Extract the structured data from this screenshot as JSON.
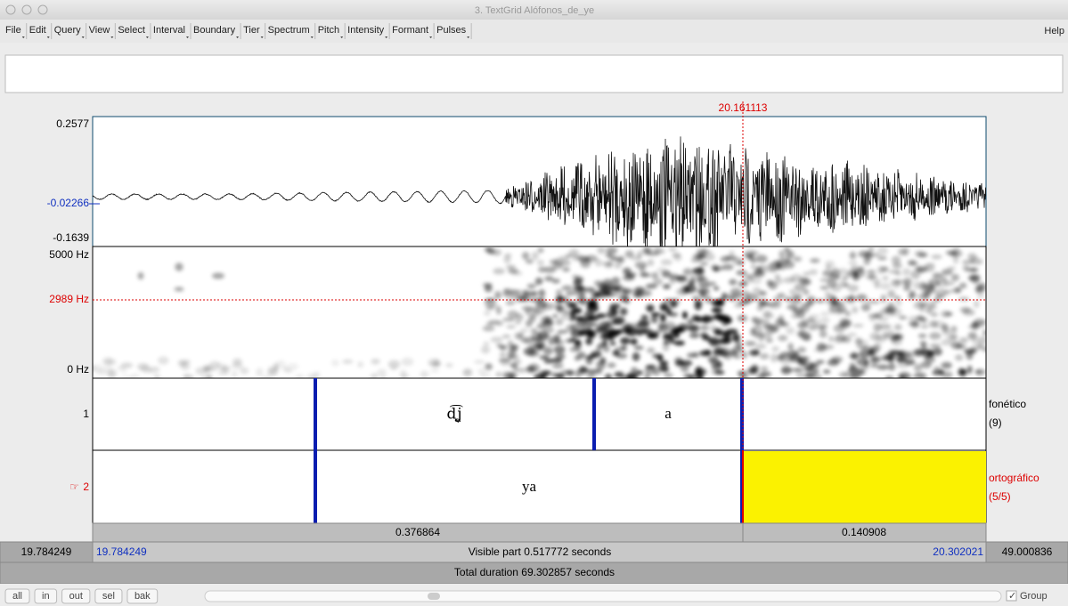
{
  "window": {
    "title": "3. TextGrid Alófonos_de_ye"
  },
  "menu": [
    "File",
    "Edit",
    "Query",
    "View",
    "Select",
    "Interval",
    "Boundary",
    "Tier",
    "Spectrum",
    "Pitch",
    "Intensity",
    "Formant",
    "Pulses"
  ],
  "help_menu": "Help",
  "editor": {
    "cursor_time": "20.161113",
    "waveform": {
      "max": "0.2577",
      "cursor": "-0.02266",
      "min": "-0.1639"
    },
    "spectrogram": {
      "max": "5000 Hz",
      "cursor": "2989 Hz",
      "min": "0 Hz"
    },
    "tiers": [
      {
        "number": "1",
        "name": "fonético",
        "count": "(9)",
        "intervals": [
          "d͡ʝ̞",
          "a"
        ]
      },
      {
        "pointer": "☞",
        "number": "2",
        "name": "ortográfico",
        "count": "(5/5)",
        "intervals": [
          "ya"
        ]
      }
    ],
    "durations": [
      "0.376864",
      "0.140908"
    ],
    "time_row": {
      "before": "19.784249",
      "start": "19.784249",
      "visible": "Visible part 0.517772 seconds",
      "end": "20.302021",
      "after": "49.000836"
    },
    "total": "Total duration 69.302857 seconds"
  },
  "buttons": [
    "all",
    "in",
    "out",
    "sel",
    "bak"
  ],
  "group": "Group"
}
